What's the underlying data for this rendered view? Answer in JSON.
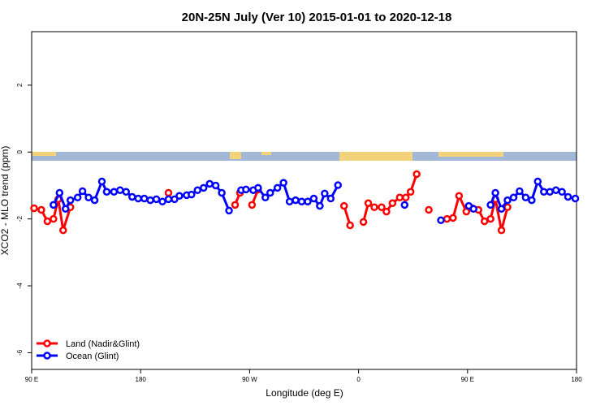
{
  "chart_data": {
    "type": "line",
    "title": "20N-25N July (Ver 10)   2015-01-01 to 2020-12-18",
    "x_label": "Longitude (deg E)",
    "y_label": "XCO2 - MLO trend (ppm)",
    "xlim": [
      90,
      540
    ],
    "ylim": [
      -6.5,
      3.6
    ],
    "xticks": [
      {
        "value": 90,
        "label": "90 E"
      },
      {
        "value": 180,
        "label": "180"
      },
      {
        "value": 270,
        "label": "90 W"
      },
      {
        "value": 360,
        "label": "0"
      },
      {
        "value": 450,
        "label": "90 E"
      },
      {
        "value": 540,
        "label": "180"
      }
    ],
    "yticks": [
      2,
      0,
      -2,
      -4,
      -6
    ],
    "legend": "bottom-left",
    "series": [
      {
        "name": "Land (Nadir&Glint)",
        "color": "#ff0000",
        "x": [
          92,
          98,
          103,
          108,
          112,
          116,
          122,
          null,
          203,
          null,
          258,
          262,
          null,
          272,
          277,
          null,
          348,
          353,
          null,
          364,
          368,
          373,
          379,
          383,
          388,
          394,
          399,
          403,
          408,
          null,
          418,
          null,
          433,
          438,
          443,
          449,
          454,
          459,
          464,
          469,
          473,
          478,
          483
        ],
        "values": [
          -1.68,
          -1.73,
          -2.07,
          -2.0,
          -1.41,
          -2.34,
          -1.65,
          null,
          -1.22,
          null,
          -1.58,
          -1.22,
          null,
          -1.58,
          -1.12,
          null,
          -1.61,
          -2.19,
          null,
          -2.09,
          -1.53,
          -1.65,
          -1.65,
          -1.78,
          -1.53,
          -1.36,
          -1.36,
          -1.19,
          -0.66,
          null,
          -1.73,
          null,
          -2.0,
          -1.97,
          -1.31,
          -1.78,
          -1.68,
          -1.73,
          -2.07,
          -2.0,
          -1.41,
          -2.34,
          -1.65
        ]
      },
      {
        "name": "Ocean (Glint)",
        "color": "#0000ff",
        "x": [
          108,
          113,
          118,
          122,
          128,
          132,
          137,
          142,
          148,
          152,
          158,
          163,
          168,
          173,
          178,
          183,
          188,
          193,
          198,
          203,
          208,
          212,
          218,
          222,
          227,
          232,
          237,
          242,
          247,
          253,
          null,
          263,
          267,
          273,
          277,
          283,
          287,
          293,
          298,
          303,
          308,
          313,
          318,
          323,
          328,
          332,
          337,
          343,
          null,
          398,
          null,
          428,
          null,
          451,
          455,
          null,
          469,
          473,
          478,
          483,
          488,
          493,
          498,
          503,
          508,
          513,
          518,
          523,
          528,
          533,
          539
        ],
        "values": [
          -1.58,
          -1.22,
          -1.7,
          -1.44,
          -1.36,
          -1.17,
          -1.36,
          -1.44,
          -0.88,
          -1.19,
          -1.19,
          -1.14,
          -1.19,
          -1.34,
          -1.39,
          -1.39,
          -1.44,
          -1.41,
          -1.48,
          -1.41,
          -1.41,
          -1.31,
          -1.29,
          -1.27,
          -1.14,
          -1.07,
          -0.95,
          -1.0,
          -1.22,
          -1.75,
          null,
          -1.14,
          -1.12,
          -1.14,
          -1.07,
          -1.36,
          -1.22,
          -1.07,
          -0.92,
          -1.48,
          -1.44,
          -1.48,
          -1.48,
          -1.39,
          -1.61,
          -1.24,
          -1.39,
          -0.99,
          null,
          -1.58,
          null,
          -2.04,
          null,
          -1.61,
          -1.7,
          null,
          -1.58,
          -1.22,
          -1.7,
          -1.44,
          -1.36,
          -1.17,
          -1.36,
          -1.44,
          -0.88,
          -1.19,
          -1.19,
          -1.14,
          -1.19,
          -1.34,
          -1.39
        ]
      }
    ]
  }
}
